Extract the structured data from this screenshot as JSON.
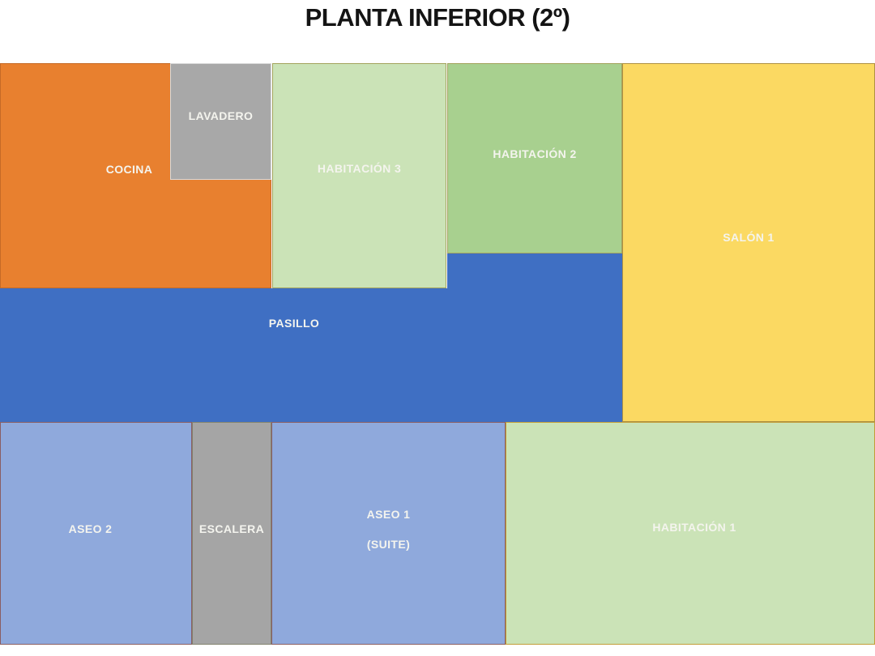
{
  "title": "PLANTA INFERIOR (2º)",
  "label_color": "#F4F4EE",
  "rooms": [
    {
      "id": "cocina",
      "label": "COCINA",
      "fill": "#E8802F",
      "border": "#C66A26"
    },
    {
      "id": "lavadero",
      "label": "LAVADERO",
      "fill": "#A8A8A8",
      "border": "#D9D9D9"
    },
    {
      "id": "habitacion-3",
      "label": "HABITACIÓN 3",
      "fill": "#CBE3B7",
      "border": "#A3A35C"
    },
    {
      "id": "habitacion-2",
      "label": "HABITACIÓN 2",
      "fill": "#A8D08F",
      "border": "#A3A35C"
    },
    {
      "id": "salon-1",
      "label": "SALÓN 1",
      "fill": "#FBD962",
      "border": "#AF9143"
    },
    {
      "id": "pasillo",
      "label": "PASILLO",
      "fill": "#3F6FC3",
      "border": ""
    },
    {
      "id": "aseo-2",
      "label": "ASEO 2",
      "fill": "#8FA9DC",
      "border": "#8A5E62"
    },
    {
      "id": "escalera",
      "label": "ESCALERA",
      "fill": "#A5A5A5",
      "border": "#83836F"
    },
    {
      "id": "aseo-1",
      "label": "ASEO 1",
      "label2": "(SUITE)",
      "fill": "#8FA9DC",
      "border": "#8A5E62"
    },
    {
      "id": "habitacion-1",
      "label": "HABITACIÓN 1",
      "fill": "#CBE3B7",
      "border": "#C29D38"
    }
  ]
}
